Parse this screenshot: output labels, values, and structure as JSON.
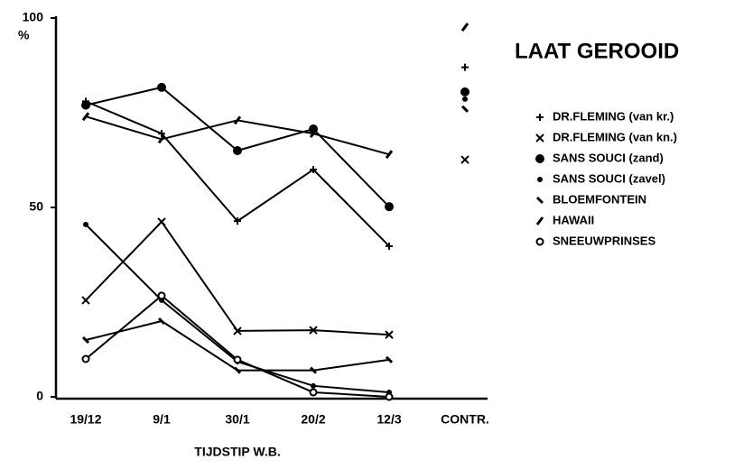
{
  "chart_data": {
    "type": "line",
    "title": "LAAT GEROOID",
    "x_label": "TIJDSTIP W.B.",
    "y_label": "%",
    "categories": [
      "19/12",
      "9/1",
      "30/1",
      "20/2",
      "12/3"
    ],
    "control_label": "CONTR.",
    "ylim": [
      0,
      100
    ],
    "yticks": [
      0,
      50,
      100
    ],
    "series": [
      {
        "name": "DR.FLEMING (van kr.)",
        "color": "#000000",
        "marker": "plus",
        "values": [
          78,
          69.5,
          46.4,
          60,
          39.8
        ],
        "control": 87
      },
      {
        "name": "DR.FLEMING (van kn.)",
        "color": "#000000",
        "marker": "x",
        "values": [
          25.5,
          46.2,
          17.4,
          17.6,
          16.4
        ],
        "control": 62.6
      },
      {
        "name": "SANS SOUCI (zand)",
        "color": "#000000",
        "marker": "dot",
        "values": [
          77,
          81.7,
          65,
          70.7,
          50.2
        ],
        "control": 80.5
      },
      {
        "name": "SANS SOUCI (zavel)",
        "color": "#000000",
        "marker": "smalldot",
        "values": [
          45.5,
          25.5,
          9.3,
          2.9,
          1.2
        ],
        "control": 78.6
      },
      {
        "name": "BLOEMFONTEIN",
        "color": "#000000",
        "marker": "tick",
        "values": [
          15,
          20,
          7,
          7,
          9.8
        ],
        "control": 76
      },
      {
        "name": "HAWAII",
        "color": "#000000",
        "marker": "slash",
        "values": [
          74,
          68,
          73,
          69.5,
          64
        ],
        "control": 97.6
      },
      {
        "name": "SNEEUWPRINSES",
        "color": "#000000",
        "marker": "circle",
        "values": [
          10,
          26.7,
          9.8,
          1.2,
          0
        ],
        "control": null
      }
    ]
  }
}
